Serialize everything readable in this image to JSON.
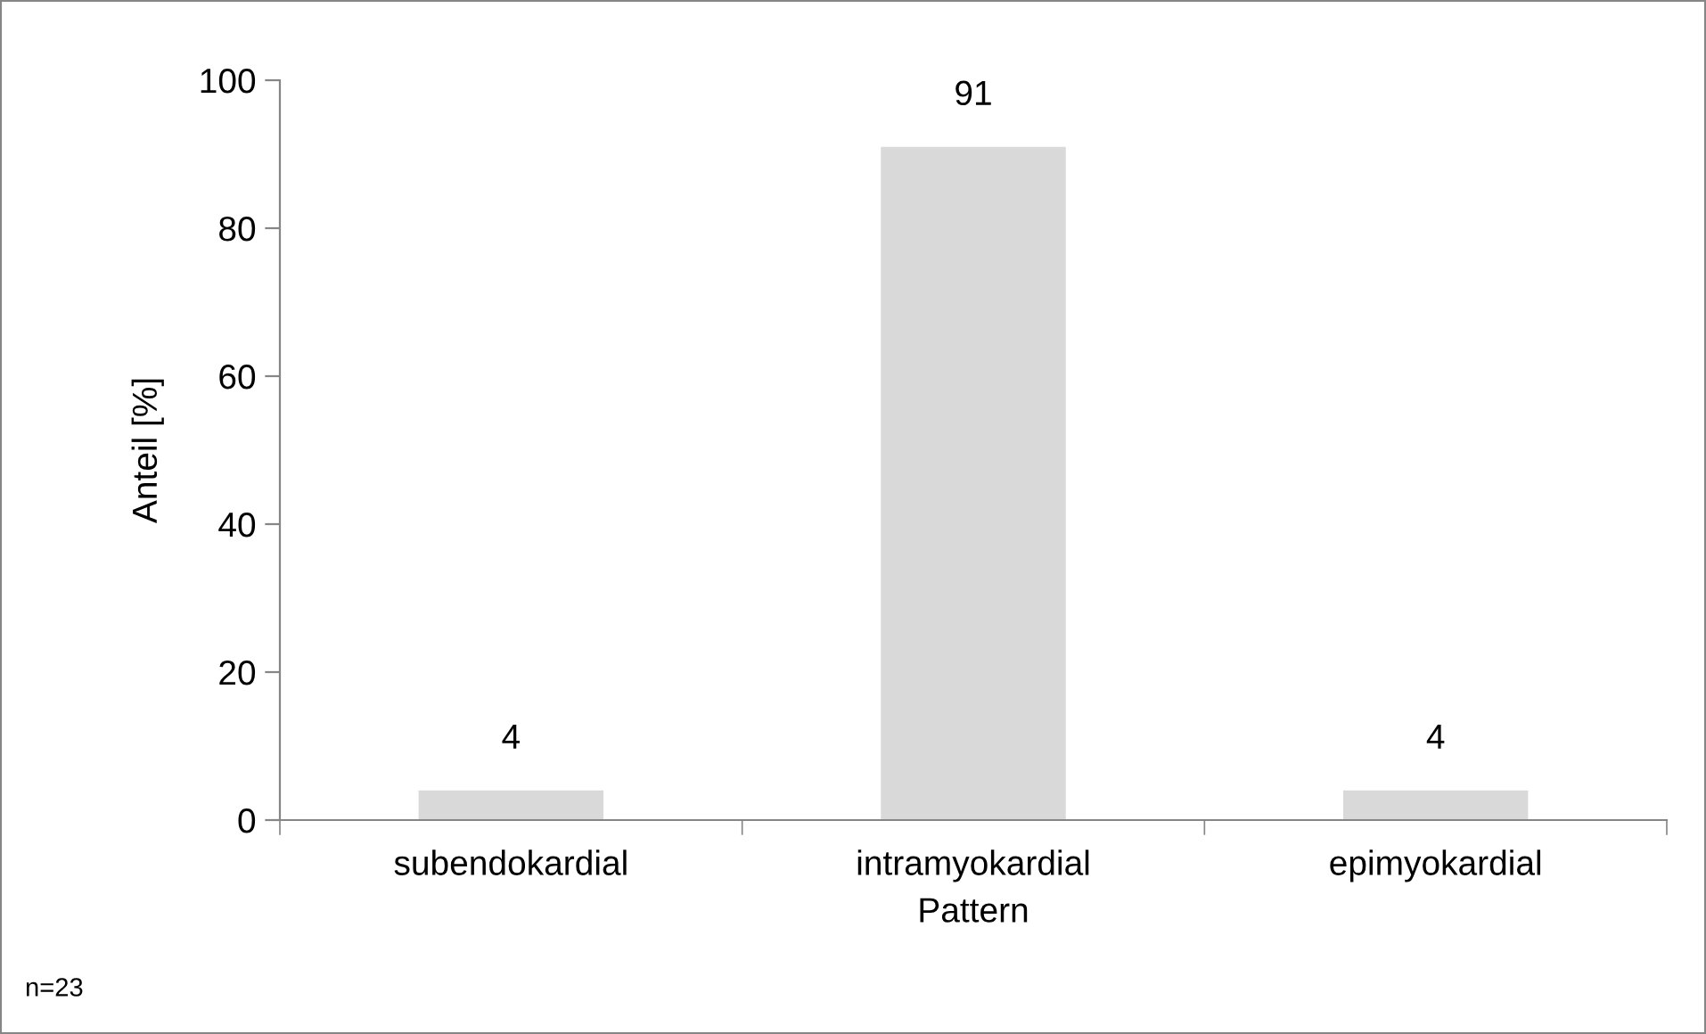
{
  "chart_data": {
    "type": "bar",
    "categories": [
      "subendokardial",
      "intramyokardial",
      "epimyokardial"
    ],
    "values": [
      4,
      91,
      4
    ],
    "color": "#d9d9d9",
    "data_labels": true,
    "xlabel": "Pattern",
    "ylabel": "Anteil [%]",
    "ylim": [
      0,
      100
    ],
    "yticks": [
      0,
      20,
      40,
      60,
      80,
      100
    ],
    "grid": false,
    "annotations": [
      "n=23"
    ]
  }
}
